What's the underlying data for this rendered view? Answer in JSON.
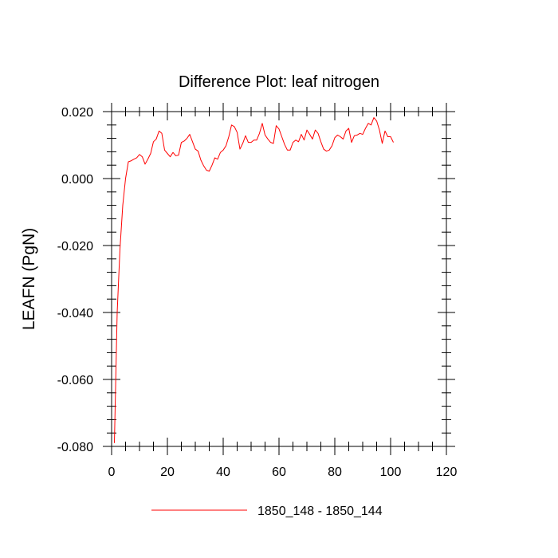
{
  "chart_data": {
    "type": "line",
    "title": "Difference Plot: leaf nitrogen",
    "xlabel": "",
    "ylabel": "LEAFN  (PgN)",
    "xlim": [
      0,
      120
    ],
    "ylim": [
      -0.08,
      0.02
    ],
    "x_ticks": [
      0,
      20,
      40,
      60,
      80,
      100,
      120
    ],
    "x_tick_labels": [
      "0",
      "20",
      "40",
      "60",
      "80",
      "100",
      "120"
    ],
    "y_ticks": [
      -0.08,
      -0.06,
      -0.04,
      -0.02,
      0.0,
      0.02
    ],
    "y_tick_labels": [
      "-0.080",
      "-0.060",
      "-0.040",
      "-0.020",
      "0.000",
      "0.020"
    ],
    "grid": false,
    "legend_position": "bottom",
    "series": [
      {
        "name": "1850_148 - 1850_144",
        "color": "#ff0000",
        "x": [
          1,
          2,
          3,
          4,
          5,
          6,
          7,
          8,
          9,
          10,
          11,
          12,
          13,
          14,
          15,
          16,
          17,
          18,
          19,
          20,
          21,
          22,
          23,
          24,
          25,
          26,
          27,
          28,
          29,
          30,
          31,
          32,
          33,
          34,
          35,
          36,
          37,
          38,
          39,
          40,
          41,
          42,
          43,
          44,
          45,
          46,
          47,
          48,
          49,
          50,
          51,
          52,
          53,
          54,
          55,
          56,
          57,
          58,
          59,
          60,
          61,
          62,
          63,
          64,
          65,
          66,
          67,
          68,
          69,
          70,
          71,
          72,
          73,
          74,
          75,
          76,
          77,
          78,
          79,
          80,
          81,
          82,
          83,
          84,
          85,
          86,
          87,
          88,
          89,
          90,
          91,
          92,
          93,
          94,
          95,
          96,
          97,
          98,
          99,
          100,
          101
        ],
        "y": [
          -0.079,
          -0.04,
          -0.021,
          -0.008,
          0.0,
          0.005,
          0.0053,
          0.0058,
          0.0062,
          0.0072,
          0.0065,
          0.0043,
          0.0058,
          0.0075,
          0.011,
          0.0118,
          0.0142,
          0.0135,
          0.0085,
          0.0075,
          0.0065,
          0.0078,
          0.0068,
          0.007,
          0.0108,
          0.0112,
          0.012,
          0.0132,
          0.011,
          0.0088,
          0.0082,
          0.0055,
          0.0038,
          0.0025,
          0.0022,
          0.004,
          0.0062,
          0.0058,
          0.0078,
          0.0085,
          0.0098,
          0.0125,
          0.016,
          0.0155,
          0.0138,
          0.0088,
          0.0105,
          0.0128,
          0.0108,
          0.0108,
          0.0115,
          0.0115,
          0.0135,
          0.0165,
          0.013,
          0.0118,
          0.0108,
          0.0105,
          0.0158,
          0.0148,
          0.0125,
          0.0102,
          0.0085,
          0.0085,
          0.0108,
          0.0115,
          0.011,
          0.0132,
          0.0115,
          0.0145,
          0.0132,
          0.0118,
          0.0145,
          0.0135,
          0.011,
          0.0088,
          0.0082,
          0.0085,
          0.0098,
          0.0122,
          0.013,
          0.0125,
          0.0118,
          0.0142,
          0.015,
          0.0108,
          0.0128,
          0.013,
          0.0135,
          0.0132,
          0.015,
          0.0165,
          0.016,
          0.0182,
          0.0172,
          0.0145,
          0.0105,
          0.0142,
          0.0125,
          0.0125,
          0.0108
        ]
      }
    ]
  }
}
